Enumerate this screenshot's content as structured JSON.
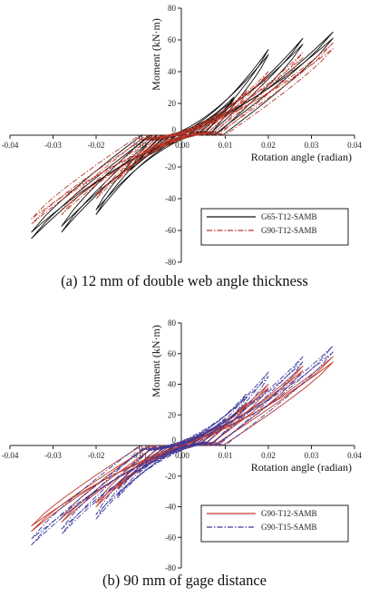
{
  "chart_data": [
    {
      "type": "line",
      "panel": "a",
      "caption": "(a) 12 mm of double web angle thickness",
      "xlabel": "Rotation angle (radian)",
      "ylabel": "Moment (kN·m)",
      "xlim": [
        -0.04,
        0.04
      ],
      "ylim": [
        -80,
        80
      ],
      "xticks": [
        "-0.04",
        "-0.03",
        "-0.02",
        "-0.01",
        "0.00",
        "0.01",
        "0.02",
        "0.03",
        "0.04"
      ],
      "yticks": [
        "80",
        "60",
        "40",
        "20",
        "0",
        "-20",
        "-40",
        "-60",
        "-80"
      ],
      "grid": false,
      "legend_position": "bottom-right",
      "series": [
        {
          "name": "G65-T12-SAMB",
          "color": "#111111",
          "dash": "solid",
          "peaks": [
            {
              "xmax": 0.005,
              "ymax": 8,
              "xmin": -0.004,
              "ymin": -6
            },
            {
              "xmax": 0.008,
              "ymax": 14,
              "xmin": -0.008,
              "ymin": -12
            },
            {
              "xmax": 0.012,
              "ymax": 24,
              "xmin": -0.012,
              "ymin": -22
            },
            {
              "xmax": 0.02,
              "ymax": 54,
              "xmin": -0.02,
              "ymin": -50
            },
            {
              "xmax": 0.028,
              "ymax": 61,
              "xmin": -0.028,
              "ymin": -61
            },
            {
              "xmax": 0.035,
              "ymax": 65,
              "xmin": -0.035,
              "ymin": -65
            }
          ]
        },
        {
          "name": "G90-T12-SAMB",
          "color": "#c0392b",
          "dash": "dashdot",
          "peaks": [
            {
              "xmax": 0.005,
              "ymax": 6,
              "xmin": -0.005,
              "ymin": -6
            },
            {
              "xmax": 0.01,
              "ymax": 14,
              "xmin": -0.01,
              "ymin": -14
            },
            {
              "xmax": 0.015,
              "ymax": 28,
              "xmin": -0.015,
              "ymin": -28
            },
            {
              "xmax": 0.02,
              "ymax": 40,
              "xmin": -0.02,
              "ymin": -40
            },
            {
              "xmax": 0.028,
              "ymax": 52,
              "xmin": -0.028,
              "ymin": -50
            },
            {
              "xmax": 0.035,
              "ymax": 58,
              "xmin": -0.035,
              "ymin": -56
            }
          ]
        }
      ]
    },
    {
      "type": "line",
      "panel": "b",
      "caption": "(b) 90 mm of gage distance",
      "xlabel": "Rotation angle (radian)",
      "ylabel": "Moment (kN·m)",
      "xlim": [
        -0.04,
        0.04
      ],
      "ylim": [
        -80,
        80
      ],
      "xticks": [
        "-0.04",
        "-0.03",
        "-0.02",
        "-0.01",
        "0.00",
        "0.01",
        "0.02",
        "0.03",
        "0.04"
      ],
      "yticks": [
        "80",
        "60",
        "40",
        "20",
        "0",
        "-20",
        "-40",
        "-60",
        "-80"
      ],
      "grid": false,
      "legend_position": "bottom-right",
      "series": [
        {
          "name": "G90-T12-SAMB",
          "color": "#c0392b",
          "dash": "solid",
          "peaks": [
            {
              "xmax": 0.005,
              "ymax": 6,
              "xmin": -0.005,
              "ymin": -6
            },
            {
              "xmax": 0.01,
              "ymax": 14,
              "xmin": -0.01,
              "ymin": -14
            },
            {
              "xmax": 0.015,
              "ymax": 28,
              "xmin": -0.015,
              "ymin": -28
            },
            {
              "xmax": 0.02,
              "ymax": 40,
              "xmin": -0.02,
              "ymin": -40
            },
            {
              "xmax": 0.028,
              "ymax": 52,
              "xmin": -0.028,
              "ymin": -50
            },
            {
              "xmax": 0.035,
              "ymax": 58,
              "xmin": -0.035,
              "ymin": -56
            }
          ]
        },
        {
          "name": "G90-T15-SAMB",
          "color": "#3a3aa0",
          "dash": "dashdot",
          "peaks": [
            {
              "xmax": 0.005,
              "ymax": 8,
              "xmin": -0.005,
              "ymin": -8
            },
            {
              "xmax": 0.01,
              "ymax": 18,
              "xmin": -0.01,
              "ymin": -18
            },
            {
              "xmax": 0.015,
              "ymax": 34,
              "xmin": -0.015,
              "ymin": -34
            },
            {
              "xmax": 0.02,
              "ymax": 48,
              "xmin": -0.02,
              "ymin": -48
            },
            {
              "xmax": 0.028,
              "ymax": 58,
              "xmin": -0.028,
              "ymin": -58
            },
            {
              "xmax": 0.035,
              "ymax": 65,
              "xmin": -0.035,
              "ymin": -65
            }
          ]
        }
      ]
    }
  ]
}
